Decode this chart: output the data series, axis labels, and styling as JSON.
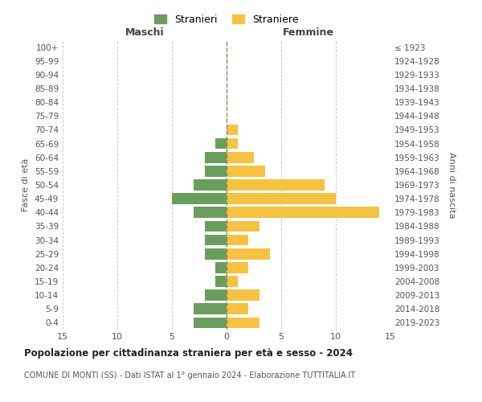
{
  "age_groups": [
    "0-4",
    "5-9",
    "10-14",
    "15-19",
    "20-24",
    "25-29",
    "30-34",
    "35-39",
    "40-44",
    "45-49",
    "50-54",
    "55-59",
    "60-64",
    "65-69",
    "70-74",
    "75-79",
    "80-84",
    "85-89",
    "90-94",
    "95-99",
    "100+"
  ],
  "birth_years": [
    "2019-2023",
    "2014-2018",
    "2009-2013",
    "2004-2008",
    "1999-2003",
    "1994-1998",
    "1989-1993",
    "1984-1988",
    "1979-1983",
    "1974-1978",
    "1969-1973",
    "1964-1968",
    "1959-1963",
    "1954-1958",
    "1949-1953",
    "1944-1948",
    "1939-1943",
    "1934-1938",
    "1929-1933",
    "1924-1928",
    "≤ 1923"
  ],
  "maschi": [
    3,
    3,
    2,
    1,
    1,
    2,
    2,
    2,
    3,
    5,
    3,
    2,
    2,
    1,
    0,
    0,
    0,
    0,
    0,
    0,
    0
  ],
  "femmine": [
    3,
    2,
    3,
    1,
    2,
    4,
    2,
    3,
    14,
    10,
    9,
    3.5,
    2.5,
    1,
    1,
    0,
    0,
    0,
    0,
    0,
    0
  ],
  "maschi_color": "#6a9e5e",
  "femmine_color": "#f5c242",
  "title": "Popolazione per cittadinanza straniera per età e sesso - 2024",
  "subtitle": "COMUNE DI MONTI (SS) - Dati ISTAT al 1° gennaio 2024 - Elaborazione TUTTITALIA.IT",
  "xlabel_left": "Maschi",
  "xlabel_right": "Femmine",
  "ylabel_left": "Fasce di età",
  "ylabel_right": "Anni di nascita",
  "legend_maschi": "Stranieri",
  "legend_femmine": "Straniere",
  "xlim": 15,
  "background_color": "#ffffff",
  "grid_color": "#cccccc",
  "bar_height": 0.8
}
